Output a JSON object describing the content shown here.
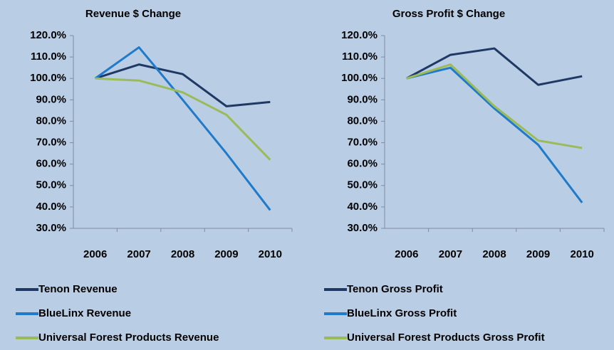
{
  "chart_data": [
    {
      "type": "line",
      "title": "Revenue $ Change",
      "categories": [
        "2006",
        "2007",
        "2008",
        "2009",
        "2010"
      ],
      "series": [
        {
          "name": "Tenon Revenue",
          "color": "#1f3864",
          "values": [
            100,
            106.5,
            102,
            87,
            89
          ]
        },
        {
          "name": "BlueLinx Revenue",
          "color": "#1f7ac9",
          "values": [
            100,
            114.5,
            90,
            65,
            38.5
          ]
        },
        {
          "name": "Universal Forest Products Revenue",
          "color": "#9bbb59",
          "values": [
            100,
            99,
            93.5,
            83,
            62
          ]
        }
      ],
      "ylim": [
        30,
        120
      ],
      "yticks": [
        {
          "value": 30,
          "label": "30.0%"
        },
        {
          "value": 40,
          "label": "40.0%"
        },
        {
          "value": 50,
          "label": "50.0%"
        },
        {
          "value": 60,
          "label": "60.0%"
        },
        {
          "value": 70,
          "label": "70.0%"
        },
        {
          "value": 80,
          "label": "80.0%"
        },
        {
          "value": 90,
          "label": "90.0%"
        },
        {
          "value": 100,
          "label": "100.0%"
        },
        {
          "value": 110,
          "label": "110.0%"
        },
        {
          "value": 120,
          "label": "120.0%"
        }
      ],
      "legend": "bottom"
    },
    {
      "type": "line",
      "title": "Gross Profit $ Change",
      "categories": [
        "2006",
        "2007",
        "2008",
        "2009",
        "2010"
      ],
      "series": [
        {
          "name": "Tenon Gross Profit",
          "color": "#1f3864",
          "values": [
            100,
            111,
            114,
            97,
            101
          ]
        },
        {
          "name": "BlueLinx Gross Profit",
          "color": "#1f7ac9",
          "values": [
            100,
            105,
            86,
            69,
            42
          ]
        },
        {
          "name": "Universal Forest Products Gross Profit",
          "color": "#9bbb59",
          "values": [
            100,
            106.5,
            87,
            71,
            67.5
          ]
        }
      ],
      "ylim": [
        30,
        120
      ],
      "yticks": [
        {
          "value": 30,
          "label": "30.0%"
        },
        {
          "value": 40,
          "label": "40.0%"
        },
        {
          "value": 50,
          "label": "50.0%"
        },
        {
          "value": 60,
          "label": "60.0%"
        },
        {
          "value": 70,
          "label": "70.0%"
        },
        {
          "value": 80,
          "label": "80.0%"
        },
        {
          "value": 90,
          "label": "90.0%"
        },
        {
          "value": 100,
          "label": "100.0%"
        },
        {
          "value": 110,
          "label": "110.0%"
        },
        {
          "value": 120,
          "label": "120.0%"
        }
      ],
      "legend": "bottom"
    }
  ]
}
